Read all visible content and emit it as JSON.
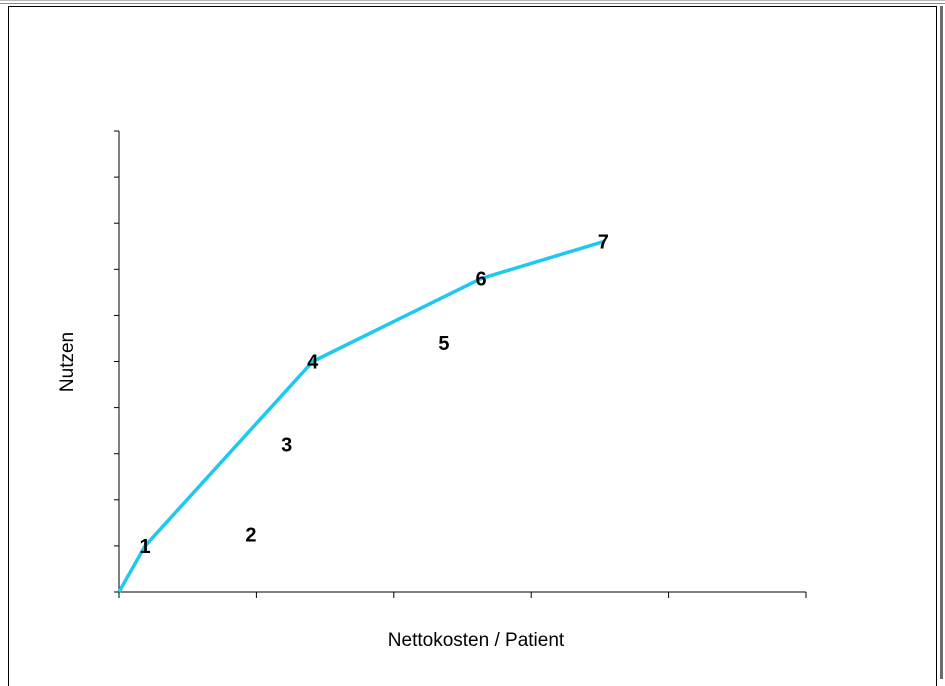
{
  "chart_data": {
    "type": "line",
    "title": "",
    "xlabel": "Nettokosten / Patient",
    "ylabel": "Nutzen",
    "xlim": [
      0,
      100
    ],
    "ylim": [
      0,
      100
    ],
    "x_tick_count": 6,
    "y_tick_count": 11,
    "tick_labels_shown": false,
    "grid": false,
    "line_color": "#1ec8f0",
    "frontier": [
      {
        "label": "",
        "x": 0,
        "y": 0
      },
      {
        "label": "1",
        "x": 3.8,
        "y": 10
      },
      {
        "label": "4",
        "x": 28.2,
        "y": 50
      },
      {
        "label": "6",
        "x": 52.7,
        "y": 68
      },
      {
        "label": "7",
        "x": 70.5,
        "y": 76
      }
    ],
    "points": [
      {
        "label": "1",
        "x": 3.8,
        "y": 10
      },
      {
        "label": "2",
        "x": 19.2,
        "y": 12.5
      },
      {
        "label": "3",
        "x": 24.4,
        "y": 32
      },
      {
        "label": "4",
        "x": 28.2,
        "y": 50
      },
      {
        "label": "5",
        "x": 47.3,
        "y": 54
      },
      {
        "label": "6",
        "x": 52.7,
        "y": 68
      },
      {
        "label": "7",
        "x": 70.5,
        "y": 76
      }
    ]
  }
}
